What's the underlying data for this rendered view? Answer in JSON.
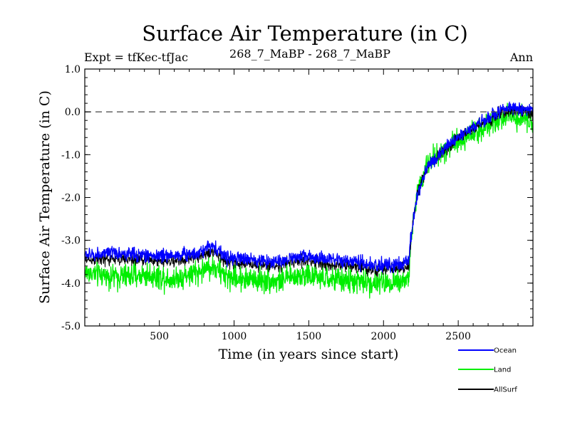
{
  "chart_data": {
    "type": "line",
    "title": "Surface Air Temperature (in C)",
    "subtitle_left": "Expt = tfKec-tfJac",
    "subtitle_center": "268_7_MaBP - 268_7_MaBP",
    "subtitle_right": "Ann",
    "xlabel": "Time (in years since start)",
    "ylabel": "Surface Air Temperature (in C)",
    "xlim": [
      1,
      3000
    ],
    "ylim": [
      -5.0,
      1.0
    ],
    "xticks": [
      500,
      1000,
      1500,
      2000,
      2500
    ],
    "xtick_labels": [
      "500",
      "1000",
      "1500",
      "2000",
      "2500"
    ],
    "yticks": [
      1.0,
      0.0,
      -1.0,
      -2.0,
      -3.0,
      -4.0,
      -5.0
    ],
    "ytick_labels": [
      "1.0",
      "0.0",
      "-1.0",
      "-2.0",
      "-3.0",
      "-4.0",
      "-5.0"
    ],
    "reference_line": {
      "y": 0.0,
      "style": "dashed"
    },
    "legend_position": "below-right",
    "series": [
      {
        "name": "Ocean",
        "color": "#0000ff",
        "noise": 0.11,
        "x": [
          1,
          200,
          400,
          600,
          750,
          850,
          950,
          1100,
          1300,
          1450,
          1600,
          1800,
          1950,
          2100,
          2170,
          2180,
          2200,
          2230,
          2300,
          2400,
          2500,
          2600,
          2700,
          2800,
          2900,
          3000
        ],
        "y": [
          -3.35,
          -3.3,
          -3.35,
          -3.35,
          -3.3,
          -3.1,
          -3.4,
          -3.45,
          -3.5,
          -3.35,
          -3.45,
          -3.5,
          -3.6,
          -3.55,
          -3.5,
          -3.0,
          -2.5,
          -1.9,
          -1.25,
          -0.9,
          -0.6,
          -0.35,
          -0.15,
          0.05,
          0.1,
          0.05
        ]
      },
      {
        "name": "Land",
        "color": "#00ee00",
        "noise": 0.2,
        "x": [
          1,
          200,
          400,
          600,
          750,
          850,
          950,
          1100,
          1300,
          1450,
          1600,
          1800,
          1950,
          2100,
          2170,
          2180,
          2200,
          2230,
          2300,
          2400,
          2500,
          2600,
          2700,
          2800,
          2900,
          3000
        ],
        "y": [
          -3.75,
          -3.85,
          -3.8,
          -3.9,
          -3.75,
          -3.6,
          -3.85,
          -3.9,
          -3.95,
          -3.8,
          -3.9,
          -3.95,
          -4.0,
          -3.95,
          -3.9,
          -3.2,
          -2.5,
          -1.8,
          -1.2,
          -0.9,
          -0.65,
          -0.5,
          -0.3,
          -0.15,
          -0.1,
          -0.2
        ]
      },
      {
        "name": "AllSurf",
        "color": "#000000",
        "noise": 0.1,
        "x": [
          1,
          200,
          400,
          600,
          750,
          850,
          950,
          1100,
          1300,
          1450,
          1600,
          1800,
          1950,
          2100,
          2170,
          2180,
          2200,
          2230,
          2300,
          2400,
          2500,
          2600,
          2700,
          2800,
          2900,
          3000
        ],
        "y": [
          -3.45,
          -3.45,
          -3.45,
          -3.5,
          -3.4,
          -3.25,
          -3.5,
          -3.55,
          -3.6,
          -3.45,
          -3.55,
          -3.6,
          -3.7,
          -3.65,
          -3.6,
          -3.1,
          -2.5,
          -1.85,
          -1.25,
          -0.9,
          -0.6,
          -0.4,
          -0.2,
          0.0,
          0.05,
          -0.05
        ]
      }
    ]
  }
}
